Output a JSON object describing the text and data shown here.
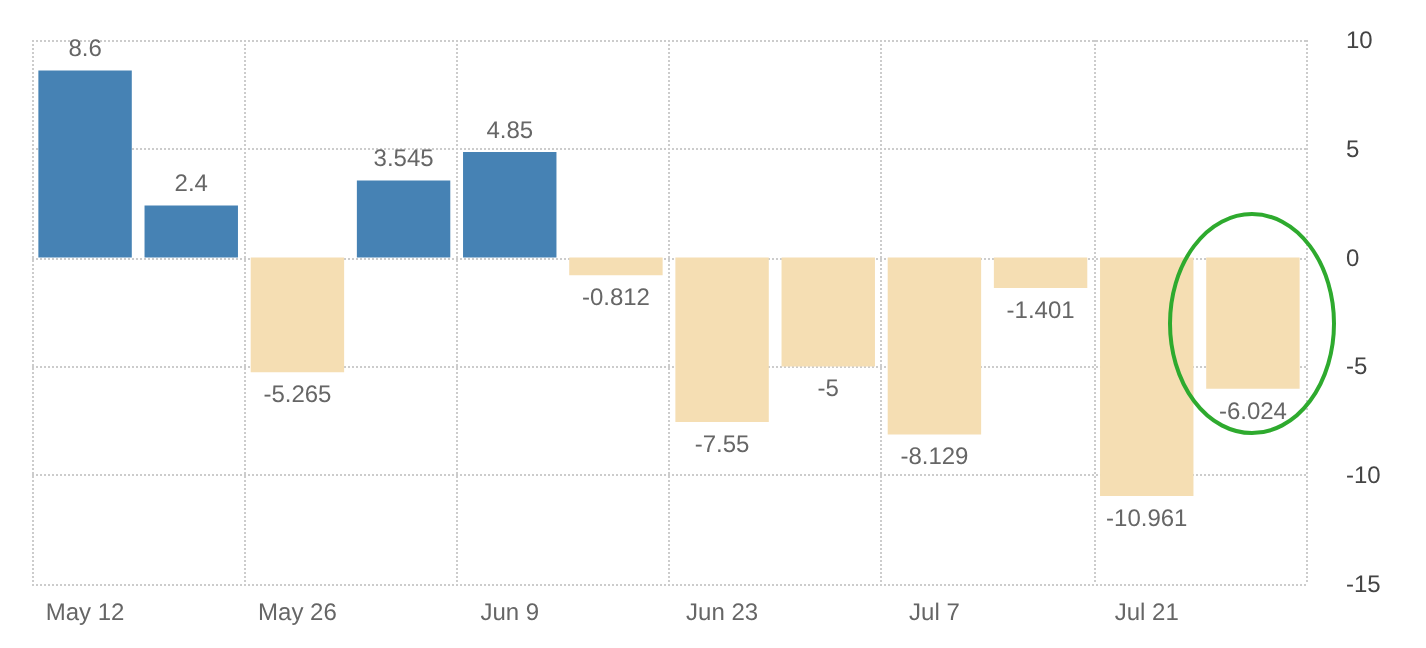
{
  "chart_data": {
    "type": "bar",
    "categories": [
      "May 12",
      null,
      "May 26",
      null,
      "Jun 9",
      null,
      "Jun 23",
      null,
      "Jul 7",
      null,
      "Jul 21",
      null
    ],
    "values": [
      8.6,
      2.4,
      -5.265,
      3.545,
      4.85,
      -0.812,
      -7.55,
      -5,
      -8.129,
      -1.401,
      -10.961,
      -6.024
    ],
    "colors": [
      "#4682b4",
      "#4682b4",
      "#f5deb3",
      "#4682b4",
      "#4682b4",
      "#f5deb3",
      "#f5deb3",
      "#f5deb3",
      "#f5deb3",
      "#f5deb3",
      "#f5deb3",
      "#f5deb3"
    ],
    "ylim": [
      -15,
      10
    ],
    "yticks": [
      -15,
      -10,
      -5,
      0,
      5,
      10
    ],
    "grid": true,
    "data_labels": true
  }
}
